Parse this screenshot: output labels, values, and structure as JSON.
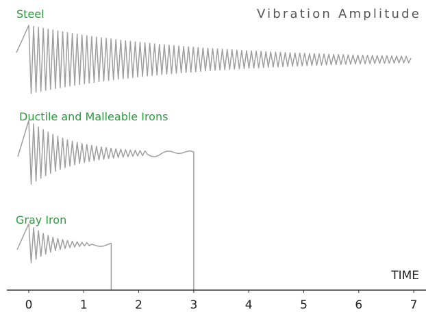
{
  "chart_data": {
    "type": "line",
    "title": "Vibration Amplitude",
    "xlabel": "TIME",
    "ylabel": "",
    "xlim": [
      -0.35,
      7.4
    ],
    "x_ticks": [
      "0",
      "1",
      "2",
      "3",
      "4",
      "5",
      "6",
      "7"
    ],
    "grid": false,
    "legend": "none",
    "series": [
      {
        "name": "Steel",
        "label_color": "#2a9b3d",
        "line_color": "#9e9e9e",
        "amplitude": 1.0,
        "decay_rate": 0.34,
        "end_time": 6.95,
        "drops_to_axis": false
      },
      {
        "name": "Ductile and Malleable Irons",
        "label_color": "#2a9b3d",
        "line_color": "#9e9e9e",
        "amplitude": 1.0,
        "decay_rate": 1.25,
        "end_time": 3.0,
        "drops_to_axis": true
      },
      {
        "name": "Gray Iron",
        "label_color": "#2a9b3d",
        "line_color": "#9e9e9e",
        "amplitude": 1.0,
        "decay_rate": 2.4,
        "end_time": 1.5,
        "drops_to_axis": true
      }
    ]
  }
}
